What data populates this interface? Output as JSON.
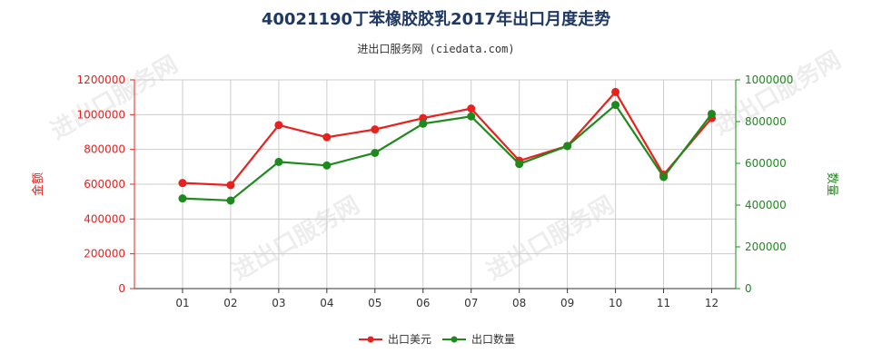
{
  "title": "40021190丁苯橡胶胶乳2017年出口月度走势",
  "subtitle": "进出口服务网 (ciedata.com)",
  "watermark": "进出口服务网",
  "colors": {
    "left_axis": "#e8201e",
    "right_axis": "#1e8a1e",
    "title": "#1f3864",
    "grid": "#cccccc"
  },
  "chart_data": {
    "type": "line",
    "categories": [
      "01",
      "02",
      "03",
      "04",
      "05",
      "06",
      "07",
      "08",
      "09",
      "10",
      "11",
      "12"
    ],
    "y_left": {
      "label": "金额",
      "ylim": [
        0,
        1200000
      ],
      "ticks": [
        "0",
        "200000",
        "400000",
        "600000",
        "800000",
        "1000000",
        "1200000"
      ]
    },
    "y_right": {
      "label": "数量",
      "ylim": [
        0,
        1000000
      ],
      "ticks": [
        "0",
        "200000",
        "400000",
        "600000",
        "800000",
        "1000000"
      ]
    },
    "series": [
      {
        "name": "出口美元",
        "axis": "left",
        "color": "#e8201e",
        "values": [
          607000,
          595000,
          940000,
          870000,
          915000,
          980000,
          1035000,
          735000,
          820000,
          1130000,
          655000,
          980000
        ]
      },
      {
        "name": "出口数量",
        "axis": "right",
        "color": "#1e8a1e",
        "values": [
          432000,
          422000,
          607000,
          590000,
          650000,
          790000,
          825000,
          597000,
          683000,
          880000,
          535000,
          837000
        ]
      }
    ],
    "grid": true,
    "legend_position": "bottom"
  }
}
